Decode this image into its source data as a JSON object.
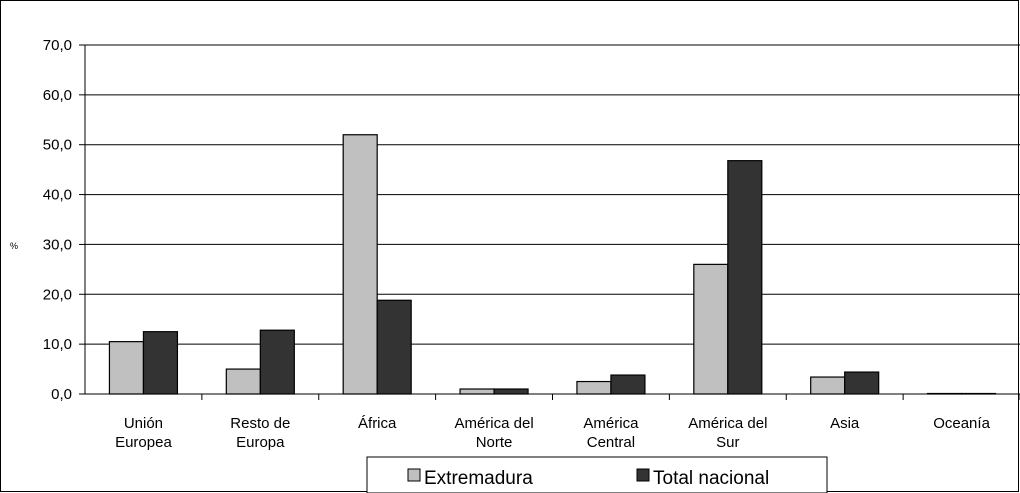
{
  "chart_data": {
    "type": "bar",
    "title": "",
    "xlabel": "",
    "ylabel": "%",
    "ylim": [
      0,
      70
    ],
    "yticks": [
      "0,0",
      "10,0",
      "20,0",
      "30,0",
      "40,0",
      "50,0",
      "60,0",
      "70,0"
    ],
    "grid": true,
    "legend_position": "bottom",
    "categories": [
      [
        "Unión",
        "Europea"
      ],
      [
        "Resto de",
        "Europa"
      ],
      [
        "África"
      ],
      [
        "América del",
        "Norte"
      ],
      [
        "América",
        "Central"
      ],
      [
        "América del",
        "Sur"
      ],
      [
        "Asia"
      ],
      [
        "Oceanía"
      ]
    ],
    "series": [
      {
        "name": "Extremadura",
        "color": "#c0c0c0",
        "values": [
          10.5,
          5.0,
          52.0,
          1.0,
          2.5,
          26.0,
          3.4,
          0.1
        ]
      },
      {
        "name": "Total nacional",
        "color": "#333333",
        "values": [
          12.5,
          12.8,
          18.8,
          1.0,
          3.8,
          46.8,
          4.4,
          0.1
        ]
      }
    ]
  }
}
